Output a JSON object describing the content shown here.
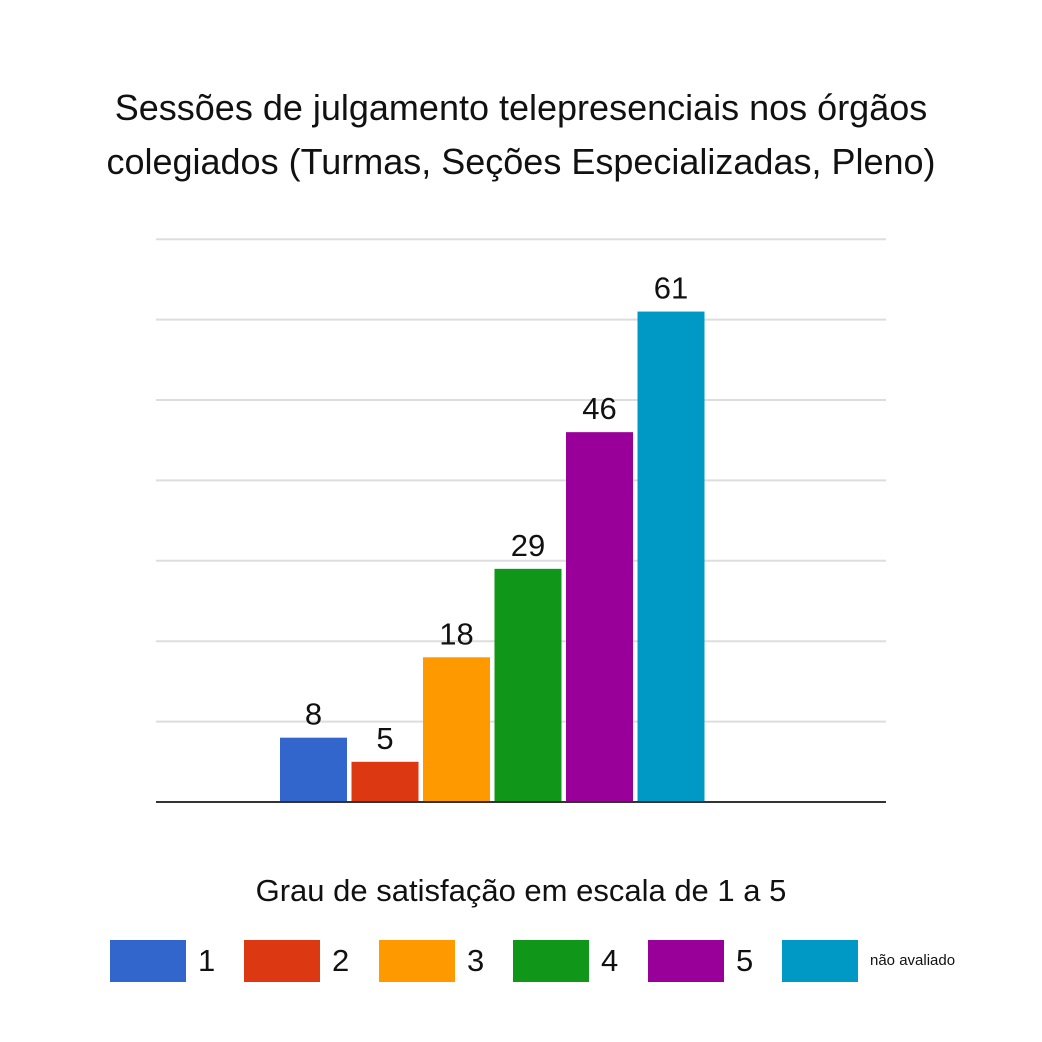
{
  "chart_data": {
    "type": "bar",
    "title_lines": [
      "Sessões de julgamento telepresenciais nos órgãos",
      "colegiados (Turmas, Seções Especializadas, Pleno)"
    ],
    "xlabel": "Grau de satisfação em escala de 1 a 5",
    "ylabel": "",
    "ylim": [
      0,
      70
    ],
    "gridlines": true,
    "categories": [
      "1",
      "2",
      "3",
      "4",
      "5",
      "não avaliado"
    ],
    "values": [
      8,
      5,
      18,
      29,
      46,
      61
    ],
    "data_labels": [
      "8",
      "5",
      "18",
      "29",
      "46",
      "61"
    ],
    "colors": [
      "#3366cc",
      "#dc3912",
      "#ff9900",
      "#109618",
      "#990099",
      "#0099c6"
    ],
    "legend_placement": "bottom"
  },
  "legend": [
    {
      "label": "1",
      "color": "#3366cc"
    },
    {
      "label": "2",
      "color": "#dc3912"
    },
    {
      "label": "3",
      "color": "#ff9900"
    },
    {
      "label": "4",
      "color": "#109618"
    },
    {
      "label": "5",
      "color": "#990099"
    },
    {
      "label": "não avaliado",
      "color": "#0099c6"
    }
  ]
}
